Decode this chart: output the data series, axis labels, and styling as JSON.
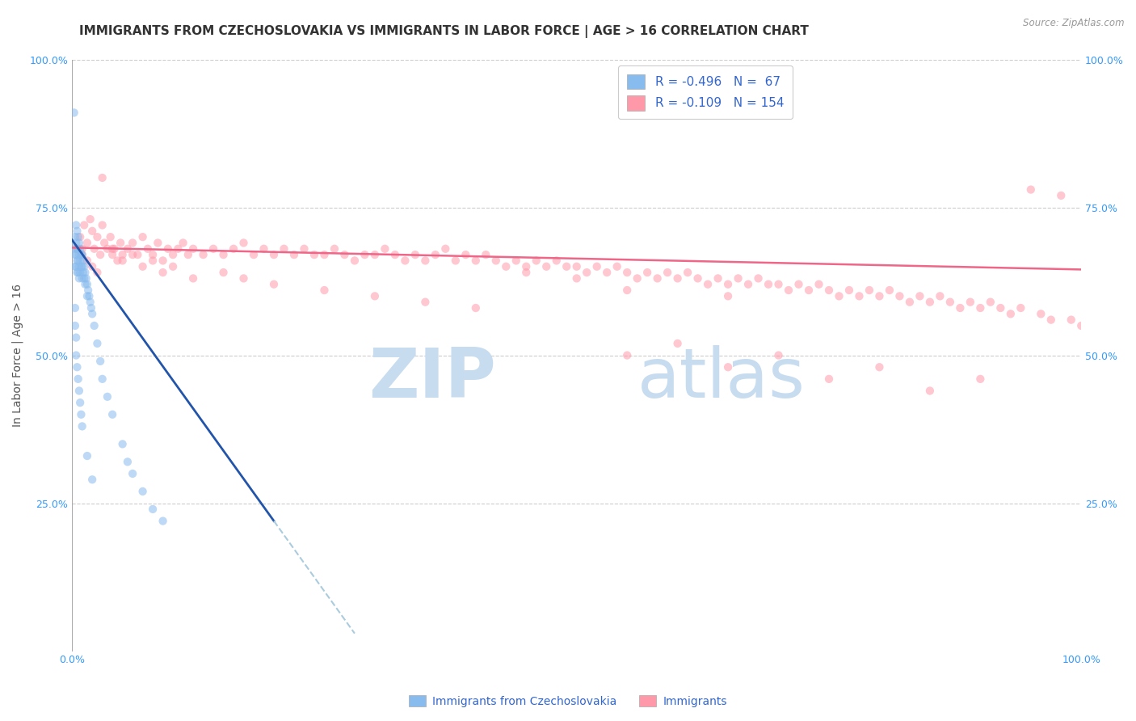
{
  "title": "IMMIGRANTS FROM CZECHOSLOVAKIA VS IMMIGRANTS IN LABOR FORCE | AGE > 16 CORRELATION CHART",
  "source_text": "Source: ZipAtlas.com",
  "ylabel": "In Labor Force | Age > 16",
  "xlim": [
    0.0,
    1.0
  ],
  "ylim": [
    0.0,
    1.0
  ],
  "legend_R1": "R = -0.496",
  "legend_N1": "N =  67",
  "legend_R2": "R = -0.109",
  "legend_N2": "N = 154",
  "blue_color": "#88BBEE",
  "pink_color": "#FF99AA",
  "blue_line_color": "#2255AA",
  "pink_line_color": "#EE6688",
  "dashed_line_color": "#AACCDD",
  "title_fontsize": 11,
  "axis_label_fontsize": 10,
  "tick_fontsize": 9,
  "legend_fontsize": 11,
  "blue_scatter_x": [
    0.002,
    0.003,
    0.003,
    0.003,
    0.003,
    0.004,
    0.004,
    0.004,
    0.004,
    0.005,
    0.005,
    0.005,
    0.005,
    0.006,
    0.006,
    0.006,
    0.006,
    0.007,
    0.007,
    0.007,
    0.007,
    0.008,
    0.008,
    0.008,
    0.009,
    0.009,
    0.01,
    0.01,
    0.01,
    0.011,
    0.011,
    0.012,
    0.012,
    0.013,
    0.013,
    0.014,
    0.015,
    0.015,
    0.016,
    0.017,
    0.018,
    0.019,
    0.02,
    0.022,
    0.025,
    0.028,
    0.03,
    0.035,
    0.04,
    0.05,
    0.055,
    0.06,
    0.07,
    0.08,
    0.09,
    0.003,
    0.003,
    0.004,
    0.004,
    0.005,
    0.006,
    0.007,
    0.008,
    0.009,
    0.01,
    0.015,
    0.02
  ],
  "blue_scatter_y": [
    0.91,
    0.7,
    0.68,
    0.67,
    0.65,
    0.72,
    0.69,
    0.67,
    0.65,
    0.71,
    0.68,
    0.66,
    0.64,
    0.7,
    0.68,
    0.66,
    0.64,
    0.69,
    0.67,
    0.65,
    0.63,
    0.68,
    0.66,
    0.64,
    0.67,
    0.65,
    0.67,
    0.65,
    0.63,
    0.66,
    0.64,
    0.65,
    0.63,
    0.64,
    0.62,
    0.63,
    0.62,
    0.6,
    0.61,
    0.6,
    0.59,
    0.58,
    0.57,
    0.55,
    0.52,
    0.49,
    0.46,
    0.43,
    0.4,
    0.35,
    0.32,
    0.3,
    0.27,
    0.24,
    0.22,
    0.58,
    0.55,
    0.53,
    0.5,
    0.48,
    0.46,
    0.44,
    0.42,
    0.4,
    0.38,
    0.33,
    0.29
  ],
  "pink_scatter_x": [
    0.005,
    0.008,
    0.01,
    0.012,
    0.015,
    0.018,
    0.02,
    0.022,
    0.025,
    0.028,
    0.03,
    0.032,
    0.035,
    0.038,
    0.04,
    0.042,
    0.045,
    0.048,
    0.05,
    0.055,
    0.06,
    0.065,
    0.07,
    0.075,
    0.08,
    0.085,
    0.09,
    0.095,
    0.1,
    0.105,
    0.11,
    0.115,
    0.12,
    0.13,
    0.14,
    0.15,
    0.16,
    0.17,
    0.18,
    0.19,
    0.2,
    0.21,
    0.22,
    0.23,
    0.24,
    0.25,
    0.26,
    0.27,
    0.28,
    0.29,
    0.3,
    0.31,
    0.32,
    0.33,
    0.34,
    0.35,
    0.36,
    0.37,
    0.38,
    0.39,
    0.4,
    0.41,
    0.42,
    0.43,
    0.44,
    0.45,
    0.46,
    0.47,
    0.48,
    0.49,
    0.5,
    0.51,
    0.52,
    0.53,
    0.54,
    0.55,
    0.56,
    0.57,
    0.58,
    0.59,
    0.6,
    0.61,
    0.62,
    0.63,
    0.64,
    0.65,
    0.66,
    0.67,
    0.68,
    0.69,
    0.7,
    0.71,
    0.72,
    0.73,
    0.74,
    0.75,
    0.76,
    0.77,
    0.78,
    0.79,
    0.8,
    0.81,
    0.82,
    0.83,
    0.84,
    0.85,
    0.86,
    0.87,
    0.88,
    0.89,
    0.9,
    0.91,
    0.92,
    0.93,
    0.94,
    0.95,
    0.96,
    0.97,
    0.98,
    0.99,
    1.0,
    0.005,
    0.01,
    0.015,
    0.02,
    0.025,
    0.03,
    0.04,
    0.05,
    0.06,
    0.07,
    0.08,
    0.09,
    0.1,
    0.12,
    0.15,
    0.17,
    0.2,
    0.25,
    0.3,
    0.35,
    0.4,
    0.55,
    0.65,
    0.75,
    0.85,
    0.6,
    0.7,
    0.8,
    0.9,
    0.45,
    0.5,
    0.55,
    0.65
  ],
  "pink_scatter_y": [
    0.68,
    0.7,
    0.68,
    0.72,
    0.69,
    0.73,
    0.71,
    0.68,
    0.7,
    0.67,
    0.72,
    0.69,
    0.68,
    0.7,
    0.67,
    0.68,
    0.66,
    0.69,
    0.67,
    0.68,
    0.69,
    0.67,
    0.7,
    0.68,
    0.67,
    0.69,
    0.66,
    0.68,
    0.67,
    0.68,
    0.69,
    0.67,
    0.68,
    0.67,
    0.68,
    0.67,
    0.68,
    0.69,
    0.67,
    0.68,
    0.67,
    0.68,
    0.67,
    0.68,
    0.67,
    0.67,
    0.68,
    0.67,
    0.66,
    0.67,
    0.67,
    0.68,
    0.67,
    0.66,
    0.67,
    0.66,
    0.67,
    0.68,
    0.66,
    0.67,
    0.66,
    0.67,
    0.66,
    0.65,
    0.66,
    0.65,
    0.66,
    0.65,
    0.66,
    0.65,
    0.65,
    0.64,
    0.65,
    0.64,
    0.65,
    0.64,
    0.63,
    0.64,
    0.63,
    0.64,
    0.63,
    0.64,
    0.63,
    0.62,
    0.63,
    0.62,
    0.63,
    0.62,
    0.63,
    0.62,
    0.62,
    0.61,
    0.62,
    0.61,
    0.62,
    0.61,
    0.6,
    0.61,
    0.6,
    0.61,
    0.6,
    0.61,
    0.6,
    0.59,
    0.6,
    0.59,
    0.6,
    0.59,
    0.58,
    0.59,
    0.58,
    0.59,
    0.58,
    0.57,
    0.58,
    0.78,
    0.57,
    0.56,
    0.77,
    0.56,
    0.55,
    0.68,
    0.67,
    0.66,
    0.65,
    0.64,
    0.8,
    0.68,
    0.66,
    0.67,
    0.65,
    0.66,
    0.64,
    0.65,
    0.63,
    0.64,
    0.63,
    0.62,
    0.61,
    0.6,
    0.59,
    0.58,
    0.5,
    0.48,
    0.46,
    0.44,
    0.52,
    0.5,
    0.48,
    0.46,
    0.64,
    0.63,
    0.61,
    0.6
  ],
  "blue_trend_start_x": 0.0,
  "blue_trend_start_y": 0.695,
  "blue_trend_end_solid_x": 0.2,
  "blue_trend_end_solid_y": 0.22,
  "blue_trend_end_dashed_x": 0.28,
  "blue_trend_end_dashed_y": 0.03,
  "pink_trend_start_x": 0.0,
  "pink_trend_start_y": 0.682,
  "pink_trend_end_x": 1.0,
  "pink_trend_end_y": 0.645
}
